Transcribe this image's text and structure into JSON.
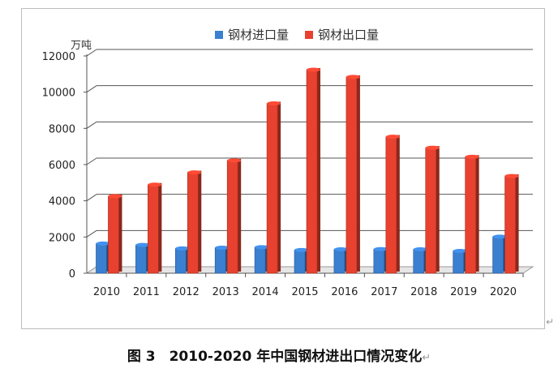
{
  "chart_data": {
    "type": "bar",
    "title": "",
    "ylabel": "万吨",
    "xlabel": "",
    "ylim": [
      0,
      12000
    ],
    "yticks": [
      0,
      2000,
      4000,
      6000,
      8000,
      10000,
      12000
    ],
    "grid": true,
    "legend_position": "top",
    "categories": [
      "2010",
      "2011",
      "2012",
      "2013",
      "2014",
      "2015",
      "2016",
      "2017",
      "2018",
      "2019",
      "2020"
    ],
    "series": [
      {
        "name": "钢材进口量",
        "color": "#3a7fd0",
        "values": [
          1640,
          1560,
          1370,
          1410,
          1440,
          1280,
          1320,
          1330,
          1320,
          1230,
          2020
        ]
      },
      {
        "name": "钢材出口量",
        "color": "#e8412f",
        "values": [
          4260,
          4890,
          5570,
          6230,
          9380,
          11240,
          10840,
          7540,
          6930,
          6430,
          5370
        ]
      }
    ]
  },
  "caption": "图 3　2010-2020 年中国钢材进出口情况变化",
  "caption_mark": "↵",
  "return_mark": "↵"
}
